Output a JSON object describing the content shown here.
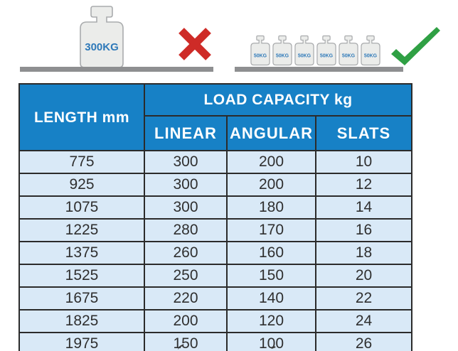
{
  "colors": {
    "header_blue": "#1781C6",
    "row_blue": "#D9E9F7",
    "border_dark": "#1c1c1c",
    "grid_line": "#2b2b2b",
    "weight_fill": "#EBECEA",
    "weight_stroke": "#A9ABAD",
    "label_blue": "#2E79B9",
    "bar_gray": "#8E8F91",
    "cross_red": "#CE2B27",
    "check_green": "#2FA044",
    "body_text": "#2f2f2f"
  },
  "illustrations": {
    "overload": {
      "weight_label": "300KG",
      "mark": "cross-icon"
    },
    "distributed": {
      "weight_label": "50KG",
      "weight_count": 6,
      "mark": "check-icon"
    }
  },
  "table": {
    "corner_header": "LENGTH mm",
    "group_header": "LOAD CAPACITY kg",
    "sub_headers": [
      "LINEAR",
      "ANGULAR",
      "SLATS"
    ],
    "rows": [
      [
        "775",
        "300",
        "200",
        "10"
      ],
      [
        "925",
        "300",
        "200",
        "12"
      ],
      [
        "1075",
        "300",
        "180",
        "14"
      ],
      [
        "1225",
        "280",
        "170",
        "16"
      ],
      [
        "1375",
        "260",
        "160",
        "18"
      ],
      [
        "1525",
        "250",
        "150",
        "20"
      ],
      [
        "1675",
        "220",
        "140",
        "22"
      ],
      [
        "1825",
        "200",
        "120",
        "24"
      ],
      [
        "1975",
        "150",
        "100",
        "26"
      ]
    ]
  }
}
